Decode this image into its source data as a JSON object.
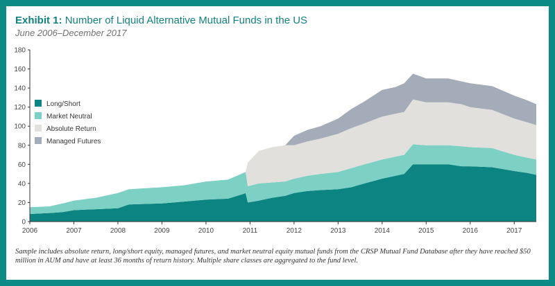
{
  "exhibit_label": "Exhibit 1:",
  "title_text": "Number of Liquid Alternative Mutual Funds in the US",
  "subtitle": "June 2006–December 2017",
  "footnote": "Sample includes absolute return, long/short equity, managed futures, and market neutral equity mutual funds from the CRSP Mutual Fund Database after they have reached $50 million in AUM and have at least 36 months of return history. Multiple share classes are aggregated to the fund level.",
  "colors": {
    "frame": "#0b8a86",
    "title": "#11817e",
    "long_short": "#0c8481",
    "market_neutral": "#7cd0c4",
    "absolute_return": "#e2e0dc",
    "managed_futures": "#a5acb9"
  },
  "chart_data": {
    "type": "area",
    "stacked": true,
    "title": "Number of Liquid Alternative Mutual Funds in the US",
    "subtitle": "June 2006–December 2017",
    "xlim": [
      2006,
      2017.5
    ],
    "ylim": [
      0,
      180
    ],
    "y_ticks": [
      0,
      20,
      40,
      60,
      80,
      100,
      120,
      140,
      160,
      180
    ],
    "x_ticks": [
      2006,
      2007,
      2008,
      2009,
      2010,
      2011,
      2012,
      2013,
      2014,
      2015,
      2016,
      2017
    ],
    "grid": false,
    "legend_position": "left",
    "x": [
      2006.0,
      2006.45,
      2006.75,
      2007.0,
      2007.5,
      2008.0,
      2008.25,
      2009.0,
      2009.5,
      2010.0,
      2010.5,
      2010.85,
      2010.9,
      2010.95,
      2011.2,
      2011.5,
      2011.8,
      2012.0,
      2012.3,
      2012.6,
      2013.0,
      2013.3,
      2013.6,
      2014.0,
      2014.3,
      2014.5,
      2014.7,
      2015.0,
      2015.5,
      2015.8,
      2016.0,
      2016.5,
      2017.0,
      2017.3,
      2017.5
    ],
    "series": [
      {
        "name": "Long/Short",
        "values": [
          8,
          9,
          10,
          12,
          13,
          14,
          18,
          19,
          21,
          23,
          24,
          29,
          30,
          20,
          22,
          25,
          27,
          30,
          32,
          33,
          34,
          36,
          40,
          45,
          48,
          50,
          60,
          60,
          60,
          58,
          58,
          57,
          53,
          51,
          49
        ]
      },
      {
        "name": "Market Neutral",
        "values": [
          7,
          7,
          9,
          10,
          12,
          16,
          16,
          17,
          17,
          19,
          20,
          22,
          22,
          17,
          18,
          16,
          15,
          15,
          16,
          17,
          18,
          20,
          20,
          20,
          20,
          20,
          21,
          20,
          20,
          21,
          20,
          20,
          17,
          16,
          16
        ]
      },
      {
        "name": "Absolute Return",
        "values": [
          0,
          0,
          0,
          0,
          0,
          0,
          0,
          0,
          0,
          0,
          0,
          0,
          0,
          25,
          34,
          37,
          38,
          35,
          36,
          37,
          40,
          42,
          43,
          45,
          45,
          45,
          47,
          45,
          45,
          44,
          42,
          40,
          38,
          37,
          36
        ]
      },
      {
        "name": "Managed Futures",
        "values": [
          0,
          0,
          0,
          0,
          0,
          0,
          0,
          0,
          0,
          0,
          0,
          0,
          0,
          0,
          0,
          0,
          0,
          10,
          12,
          13,
          16,
          20,
          23,
          28,
          28,
          30,
          27,
          25,
          25,
          24,
          25,
          25,
          24,
          23,
          22
        ]
      }
    ]
  }
}
